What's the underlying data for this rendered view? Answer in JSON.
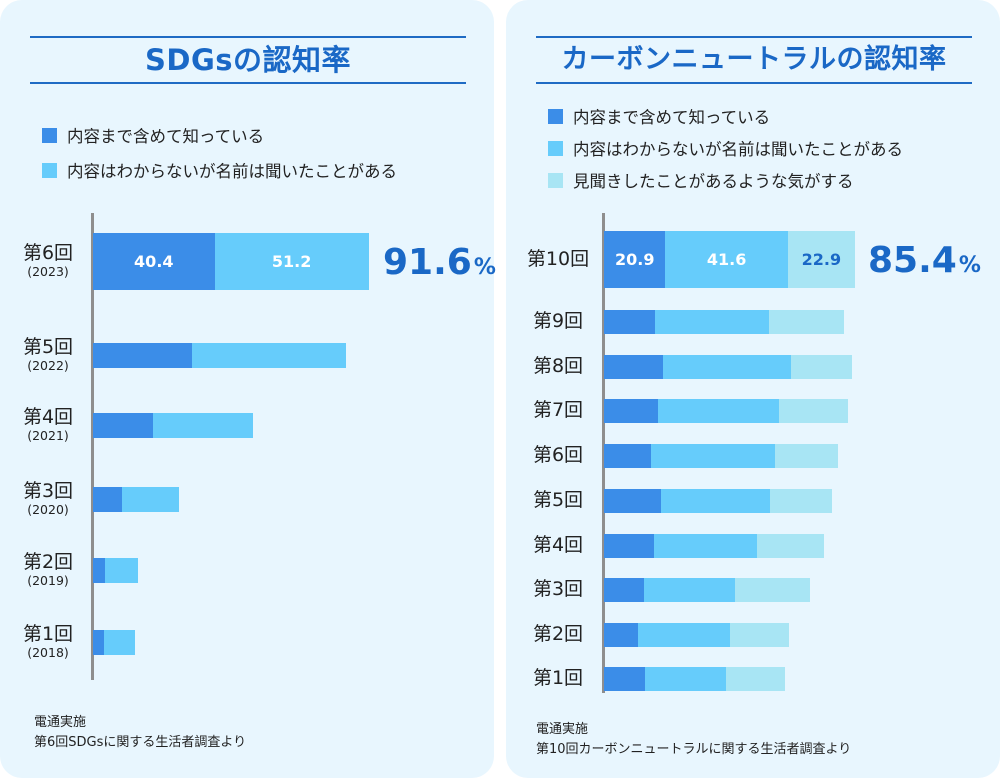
{
  "charts": {
    "sdgs": {
      "title": "SDGsの認知率",
      "legend": [
        {
          "label": "内容まで含めて知っている",
          "color": "#3b8de8"
        },
        {
          "label": "内容はわからないが名前は聞いたことがある",
          "color": "#66ccfb"
        }
      ],
      "source": [
        "電通実施",
        "第6回SDGsに関する生活者調査より"
      ],
      "highlight_total": {
        "value": "91.6",
        "unit": "%"
      }
    },
    "carbon": {
      "title": "カーボンニュートラルの認知率",
      "legend": [
        {
          "label": "内容まで含めて知っている",
          "color": "#3b8de8"
        },
        {
          "label": "内容はわからないが名前は聞いたことがある",
          "color": "#66ccfb"
        },
        {
          "label": "見聞きしたことがあるような気がする",
          "color": "#a8e5f4"
        }
      ],
      "source": [
        "電通実施",
        "第10回カーボンニュートラルに関する生活者調査より"
      ],
      "highlight_total": {
        "value": "85.4",
        "unit": "%"
      }
    }
  },
  "chart_data": [
    {
      "type": "bar",
      "orientation": "horizontal",
      "stacked": true,
      "title": "SDGsの認知率",
      "unit": "%",
      "categories": [
        "第6回",
        "第5回",
        "第4回",
        "第3回",
        "第2回",
        "第1回"
      ],
      "category_years": [
        "(2023)",
        "(2022)",
        "(2021)",
        "(2020)",
        "(2019)",
        "(2018)"
      ],
      "series": [
        {
          "name": "内容まで含めて知っている",
          "color": "#3b8de8",
          "values": [
            40.4,
            33.0,
            20.0,
            9.5,
            4.0,
            3.5
          ]
        },
        {
          "name": "内容はわからないが名前は聞いたことがある",
          "color": "#66ccfb",
          "values": [
            51.2,
            51.0,
            33.0,
            19.0,
            11.0,
            10.5
          ]
        }
      ],
      "data_labels": {
        "row": 0,
        "values": [
          "40.4",
          "51.2"
        ]
      },
      "xlim": [
        0,
        100
      ],
      "grid": false,
      "legend": "top-left"
    },
    {
      "type": "bar",
      "orientation": "horizontal",
      "stacked": true,
      "title": "カーボンニュートラルの認知率",
      "unit": "%",
      "categories": [
        "第10回",
        "第9回",
        "第8回",
        "第7回",
        "第6回",
        "第5回",
        "第4回",
        "第3回",
        "第2回",
        "第1回"
      ],
      "series": [
        {
          "name": "内容まで含めて知っている",
          "color": "#3b8de8",
          "values": [
            20.9,
            17.5,
            20.0,
            18.5,
            16.0,
            19.5,
            17.0,
            13.5,
            11.5,
            14.0
          ]
        },
        {
          "name": "内容はわからないが名前は聞いたことがある",
          "color": "#66ccfb",
          "values": [
            41.6,
            38.5,
            43.5,
            41.0,
            42.0,
            37.0,
            35.0,
            31.0,
            31.5,
            27.5
          ]
        },
        {
          "name": "見聞きしたことがあるような気がする",
          "color": "#a8e5f4",
          "values": [
            22.9,
            25.5,
            21.0,
            23.5,
            21.5,
            21.0,
            23.0,
            25.5,
            20.0,
            20.0
          ]
        }
      ],
      "data_labels": {
        "row": 0,
        "values": [
          "20.9",
          "41.6",
          "22.9"
        ]
      },
      "xlim": [
        0,
        100
      ],
      "grid": false,
      "legend": "top-left"
    }
  ]
}
